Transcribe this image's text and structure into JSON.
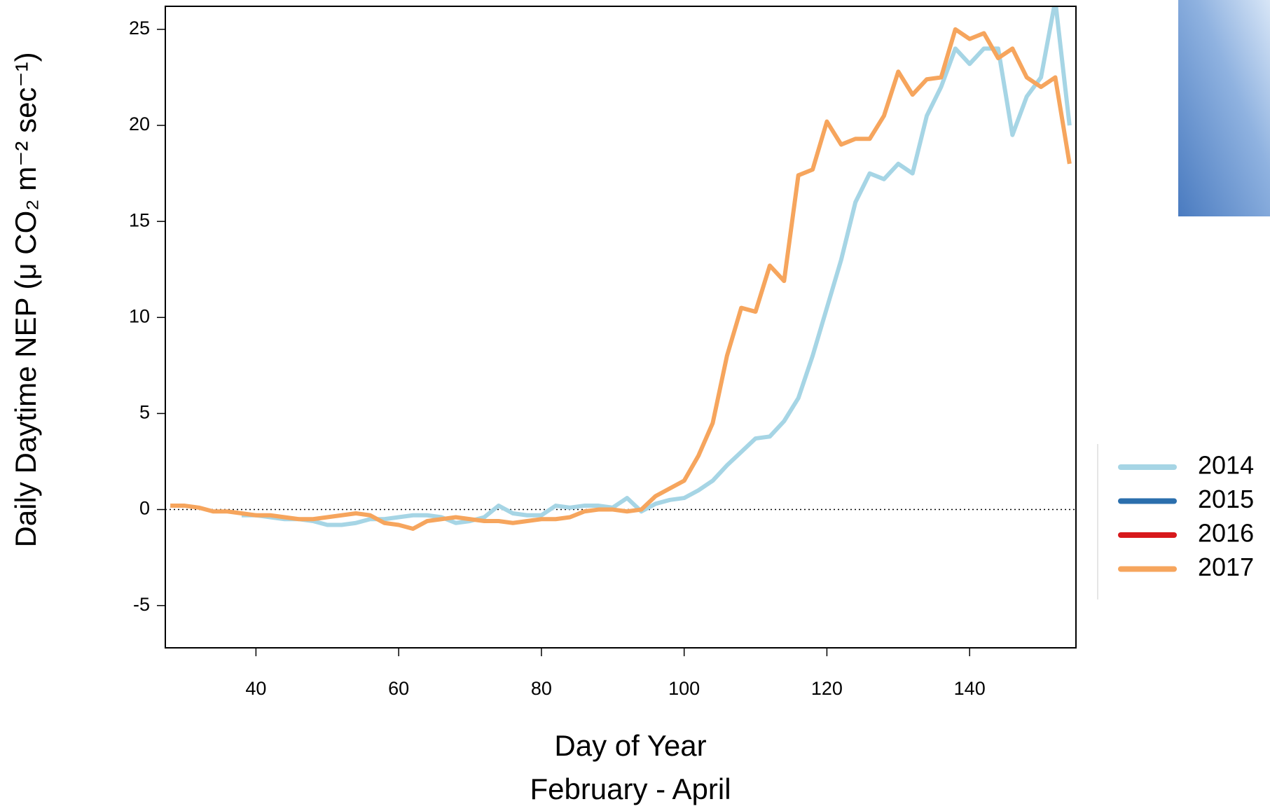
{
  "chart_data": {
    "type": "line",
    "y_label": "Daily Daytime NEP (μ CO₂ m⁻² sec⁻¹)",
    "x_label": "Day of Year",
    "x_sublabel": "February - April",
    "x": [
      28,
      30,
      32,
      34,
      36,
      38,
      40,
      42,
      44,
      46,
      48,
      50,
      52,
      54,
      56,
      58,
      60,
      62,
      64,
      66,
      68,
      70,
      72,
      74,
      76,
      78,
      80,
      82,
      84,
      86,
      88,
      90,
      92,
      94,
      96,
      98,
      100,
      102,
      104,
      106,
      108,
      110,
      112,
      114,
      116,
      118,
      120,
      122,
      124,
      126,
      128,
      130,
      132,
      134,
      136,
      138,
      140,
      142,
      144,
      146,
      148,
      150,
      152,
      154
    ],
    "series": [
      {
        "name": "2014",
        "color": "#a6d5e5",
        "values": [
          null,
          null,
          null,
          null,
          null,
          -0.3,
          -0.3,
          -0.4,
          -0.5,
          -0.5,
          -0.6,
          -0.8,
          -0.8,
          -0.7,
          -0.5,
          -0.5,
          -0.4,
          -0.3,
          -0.3,
          -0.4,
          -0.7,
          -0.6,
          -0.4,
          0.2,
          -0.2,
          -0.3,
          -0.3,
          0.2,
          0.1,
          0.2,
          0.2,
          0.1,
          0.6,
          -0.1,
          0.3,
          0.5,
          0.6,
          1.0,
          1.5,
          2.3,
          3.0,
          3.7,
          3.8,
          4.6,
          5.8,
          8.0,
          10.5,
          13.0,
          16.0,
          17.5,
          17.2,
          18.0,
          17.5,
          20.5,
          22.0,
          24.0,
          23.2,
          24.0,
          24.0,
          19.5,
          21.5,
          22.5,
          26.5,
          20.0
        ]
      },
      {
        "name": "2015",
        "color": "#2b6fad",
        "values": [
          null,
          null,
          null,
          null,
          null,
          null,
          null,
          null,
          null,
          null,
          null,
          null,
          null,
          null,
          null,
          null,
          null,
          null,
          null,
          null,
          null,
          null,
          null,
          null,
          null,
          null,
          null,
          null,
          null,
          null,
          null,
          null,
          null,
          null,
          null,
          null,
          null,
          null,
          null,
          null,
          null,
          null,
          null,
          null,
          null,
          null,
          null,
          null,
          null,
          null,
          null,
          null,
          null,
          null,
          null,
          null,
          null,
          null,
          null,
          null,
          null,
          null,
          null,
          null
        ]
      },
      {
        "name": "2016",
        "color": "#d7191c",
        "values": [
          null,
          null,
          null,
          null,
          null,
          null,
          null,
          null,
          null,
          null,
          null,
          null,
          null,
          null,
          null,
          null,
          null,
          null,
          null,
          null,
          null,
          null,
          null,
          null,
          null,
          null,
          null,
          null,
          null,
          null,
          null,
          null,
          null,
          null,
          null,
          null,
          null,
          null,
          null,
          null,
          null,
          null,
          null,
          null,
          null,
          null,
          null,
          null,
          null,
          null,
          null,
          null,
          null,
          null,
          null,
          null,
          null,
          null,
          null,
          null,
          null,
          null,
          null,
          null
        ]
      },
      {
        "name": "2017",
        "color": "#f6a55d",
        "values": [
          0.2,
          0.2,
          0.1,
          -0.1,
          -0.1,
          -0.2,
          -0.3,
          -0.3,
          -0.4,
          -0.5,
          -0.5,
          -0.4,
          -0.3,
          -0.2,
          -0.3,
          -0.7,
          -0.8,
          -1.0,
          -0.6,
          -0.5,
          -0.4,
          -0.5,
          -0.6,
          -0.6,
          -0.7,
          -0.6,
          -0.5,
          -0.5,
          -0.4,
          -0.1,
          0.0,
          0.0,
          -0.1,
          0.0,
          0.7,
          1.1,
          1.5,
          2.8,
          4.5,
          8.0,
          10.5,
          10.3,
          12.7,
          11.9,
          17.4,
          17.7,
          20.2,
          19.0,
          19.3,
          19.3,
          20.5,
          22.8,
          21.6,
          22.4,
          22.5,
          25.0,
          24.5,
          24.8,
          23.5,
          24.0,
          22.5,
          22.0,
          22.5,
          18.0
        ]
      }
    ],
    "xlim": [
      27.3,
      154.9
    ],
    "ylim": [
      -7.2,
      26.2
    ],
    "xticks": [
      40,
      60,
      80,
      100,
      120,
      140
    ],
    "yticks": [
      -5,
      0,
      5,
      10,
      15,
      20,
      25
    ],
    "hline": 0
  }
}
